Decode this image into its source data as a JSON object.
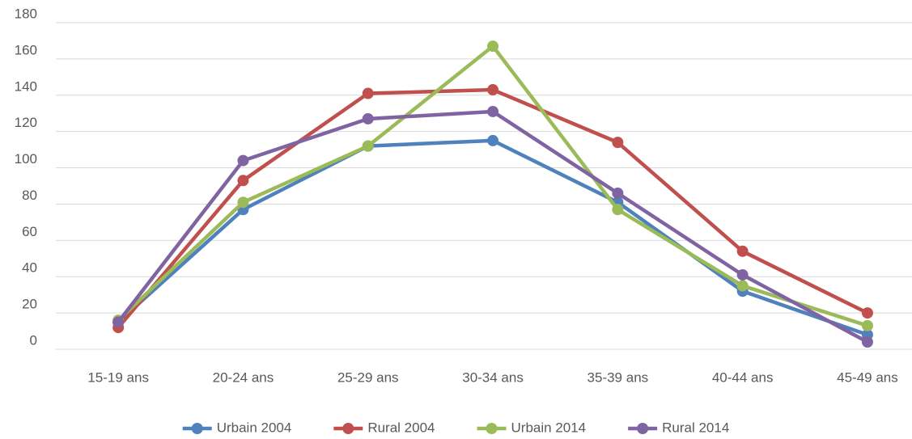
{
  "chart_data": {
    "type": "line",
    "categories": [
      "15-19 ans",
      "20-24 ans",
      "25-29 ans",
      "30-34 ans",
      "35-39 ans",
      "40-44 ans",
      "45-49 ans"
    ],
    "series": [
      {
        "name": "Urbain 2004",
        "color": "#4f81bd",
        "values": [
          15,
          77,
          112,
          115,
          81,
          32,
          8
        ]
      },
      {
        "name": "Rural 2004",
        "color": "#c0504d",
        "values": [
          12,
          93,
          141,
          143,
          114,
          54,
          20
        ]
      },
      {
        "name": "Urbain 2014",
        "color": "#9bbb59",
        "values": [
          16,
          81,
          112,
          167,
          77,
          35,
          13
        ]
      },
      {
        "name": "Rural 2014",
        "color": "#8064a2",
        "values": [
          15,
          104,
          127,
          131,
          86,
          41,
          4
        ]
      }
    ],
    "ylim": [
      0,
      180
    ],
    "yticks": [
      0,
      20,
      40,
      60,
      80,
      100,
      120,
      140,
      160,
      180
    ],
    "grid": true,
    "legend": "bottom"
  }
}
